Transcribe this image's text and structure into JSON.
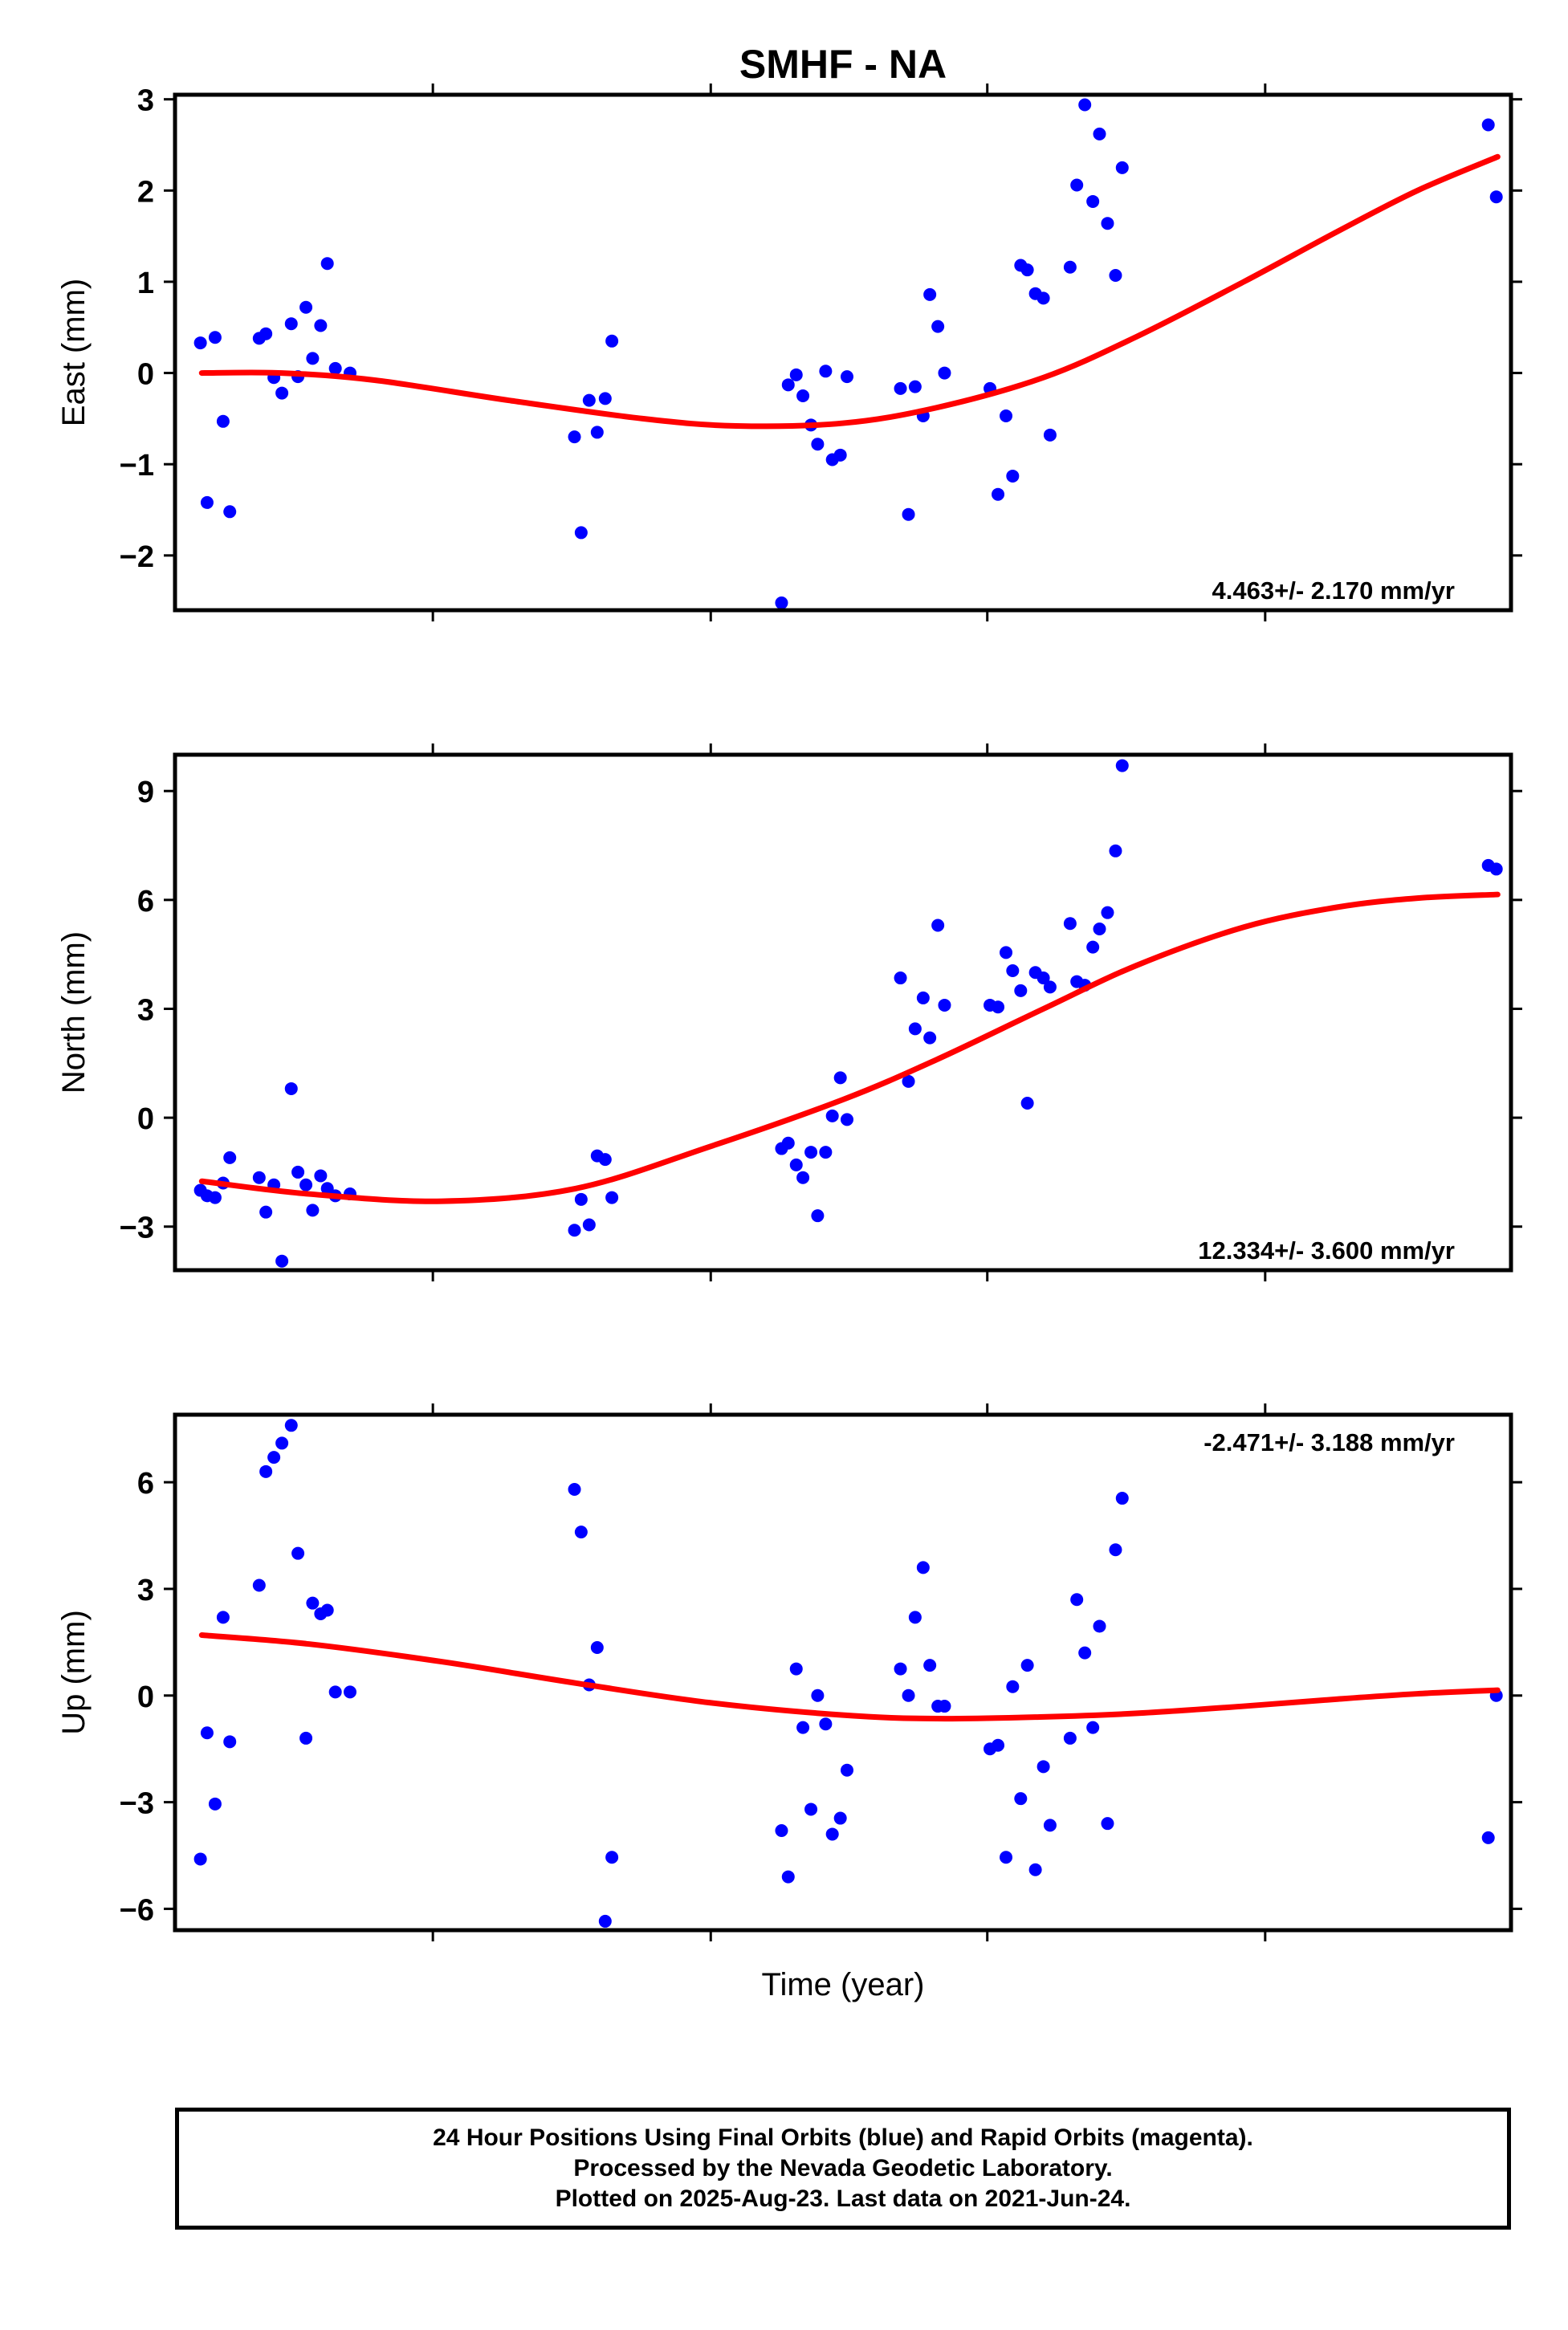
{
  "title": "SMHF - NA",
  "xlabel": "Time (year)",
  "caption": {
    "line1": "24 Hour Positions Using Final Orbits (blue) and Rapid Orbits (magenta).",
    "line2": "Processed by the Nevada Geodetic Laboratory.",
    "line3": "Plotted on 2025-Aug-23. Last data on 2021-Jun-24."
  },
  "colors": {
    "points": "#0000ff",
    "fit": "#ff0000",
    "frame": "#000000"
  },
  "chart_data": [
    {
      "type": "scatter",
      "ylabel": "East (mm)",
      "rate_label": "4.463+/- 2.170 mm/yr",
      "rate_position": "bottom-right",
      "ylim": [
        -2.6,
        3.05
      ],
      "yticks": [
        3,
        2,
        1,
        0,
        -1,
        -2
      ],
      "xlim": [
        0,
        1
      ],
      "series": [
        {
          "kind": "points",
          "x": [
            0.019,
            0.024,
            0.03,
            0.036,
            0.041,
            0.063,
            0.068,
            0.074,
            0.08,
            0.087,
            0.092,
            0.098,
            0.103,
            0.109,
            0.114,
            0.12,
            0.131,
            0.299,
            0.304,
            0.31,
            0.316,
            0.322,
            0.327,
            0.454,
            0.459,
            0.465,
            0.47,
            0.476,
            0.481,
            0.487,
            0.492,
            0.498,
            0.503,
            0.543,
            0.549,
            0.554,
            0.56,
            0.565,
            0.571,
            0.576,
            0.61,
            0.616,
            0.622,
            0.627,
            0.633,
            0.638,
            0.644,
            0.65,
            0.655,
            0.67,
            0.675,
            0.681,
            0.687,
            0.692,
            0.698,
            0.704,
            0.709,
            0.983,
            0.989
          ],
          "y": [
            0.33,
            -1.42,
            0.39,
            -0.53,
            -1.52,
            0.38,
            0.43,
            -0.05,
            -0.22,
            0.54,
            -0.04,
            0.72,
            0.16,
            0.52,
            1.2,
            0.05,
            0.0,
            -0.7,
            -1.75,
            -0.3,
            -0.65,
            -0.28,
            0.35,
            -2.52,
            -0.13,
            -0.02,
            -0.25,
            -0.57,
            -0.78,
            0.02,
            -0.95,
            -0.9,
            -0.04,
            -0.17,
            -1.55,
            -0.15,
            -0.47,
            0.86,
            0.51,
            0.0,
            -0.17,
            -1.33,
            -0.47,
            -1.13,
            1.18,
            1.13,
            0.87,
            0.82,
            -0.68,
            1.16,
            2.06,
            2.94,
            1.88,
            2.62,
            1.64,
            1.07,
            2.25,
            2.72,
            1.93
          ]
        },
        {
          "kind": "fit",
          "x": [
            0.02,
            0.08,
            0.15,
            0.25,
            0.35,
            0.42,
            0.5,
            0.57,
            0.65,
            0.72,
            0.8,
            0.87,
            0.93,
            0.99
          ],
          "y": [
            0.0,
            0.0,
            -0.08,
            -0.3,
            -0.5,
            -0.58,
            -0.55,
            -0.38,
            -0.05,
            0.4,
            1.0,
            1.55,
            2.0,
            2.37
          ]
        }
      ]
    },
    {
      "type": "scatter",
      "ylabel": "North (mm)",
      "rate_label": "12.334+/- 3.600 mm/yr",
      "rate_position": "bottom-right",
      "ylim": [
        -4.2,
        10.0
      ],
      "yticks": [
        9,
        6,
        3,
        0,
        -3
      ],
      "xlim": [
        0,
        1
      ],
      "series": [
        {
          "kind": "points",
          "x": [
            0.019,
            0.024,
            0.03,
            0.036,
            0.041,
            0.063,
            0.068,
            0.074,
            0.08,
            0.087,
            0.092,
            0.098,
            0.103,
            0.109,
            0.114,
            0.12,
            0.131,
            0.299,
            0.304,
            0.31,
            0.316,
            0.322,
            0.327,
            0.454,
            0.459,
            0.465,
            0.47,
            0.476,
            0.481,
            0.487,
            0.492,
            0.498,
            0.503,
            0.543,
            0.549,
            0.554,
            0.56,
            0.565,
            0.571,
            0.576,
            0.61,
            0.616,
            0.622,
            0.627,
            0.633,
            0.638,
            0.644,
            0.65,
            0.655,
            0.67,
            0.675,
            0.681,
            0.687,
            0.692,
            0.698,
            0.704,
            0.709,
            0.983,
            0.989
          ],
          "y": [
            -2.0,
            -2.15,
            -2.2,
            -1.8,
            -1.1,
            -1.65,
            -2.6,
            -1.85,
            -3.95,
            0.8,
            -1.5,
            -1.85,
            -2.55,
            -1.6,
            -1.95,
            -2.15,
            -2.1,
            -3.1,
            -2.25,
            -2.95,
            -1.05,
            -1.15,
            -2.2,
            -0.85,
            -0.7,
            -1.3,
            -1.65,
            -0.95,
            -2.7,
            -0.95,
            0.05,
            1.1,
            -0.05,
            3.85,
            1.0,
            2.45,
            3.3,
            2.2,
            5.3,
            3.1,
            3.1,
            3.05,
            4.55,
            4.05,
            3.5,
            0.4,
            4.0,
            3.85,
            3.6,
            5.35,
            3.75,
            3.65,
            4.7,
            5.2,
            5.65,
            7.35,
            9.7,
            6.95,
            6.85
          ]
        },
        {
          "kind": "fit",
          "x": [
            0.02,
            0.1,
            0.2,
            0.3,
            0.4,
            0.5,
            0.57,
            0.65,
            0.72,
            0.8,
            0.87,
            0.93,
            0.99
          ],
          "y": [
            -1.75,
            -2.1,
            -2.3,
            -1.95,
            -0.8,
            0.5,
            1.6,
            3.0,
            4.2,
            5.25,
            5.8,
            6.05,
            6.15
          ]
        }
      ]
    },
    {
      "type": "scatter",
      "ylabel": "Up (mm)",
      "rate_label": "-2.471+/- 3.188 mm/yr",
      "rate_position": "top-right",
      "ylim": [
        -6.6,
        7.9
      ],
      "yticks": [
        6,
        3,
        0,
        -3,
        -6
      ],
      "xlim": [
        0,
        1
      ],
      "series": [
        {
          "kind": "points",
          "x": [
            0.019,
            0.024,
            0.03,
            0.036,
            0.041,
            0.063,
            0.068,
            0.074,
            0.08,
            0.087,
            0.092,
            0.098,
            0.103,
            0.109,
            0.114,
            0.12,
            0.131,
            0.299,
            0.304,
            0.31,
            0.316,
            0.322,
            0.327,
            0.454,
            0.459,
            0.465,
            0.47,
            0.476,
            0.481,
            0.487,
            0.492,
            0.498,
            0.503,
            0.543,
            0.549,
            0.554,
            0.56,
            0.565,
            0.571,
            0.576,
            0.61,
            0.616,
            0.622,
            0.627,
            0.633,
            0.638,
            0.644,
            0.65,
            0.655,
            0.67,
            0.675,
            0.681,
            0.687,
            0.692,
            0.698,
            0.704,
            0.709,
            0.983,
            0.989
          ],
          "y": [
            -4.6,
            -1.05,
            -3.05,
            2.2,
            -1.3,
            3.1,
            6.3,
            6.7,
            7.1,
            7.6,
            4.0,
            -1.2,
            2.6,
            2.3,
            2.4,
            0.1,
            0.1,
            5.8,
            4.6,
            0.3,
            1.35,
            -6.35,
            -4.55,
            -3.8,
            -5.1,
            0.75,
            -0.9,
            -3.2,
            0.0,
            -0.8,
            -3.9,
            -3.45,
            -2.1,
            0.75,
            0.0,
            2.2,
            3.6,
            0.85,
            -0.3,
            -0.3,
            -1.5,
            -1.4,
            -4.55,
            0.25,
            -2.9,
            0.85,
            -4.9,
            -2.0,
            -3.65,
            -1.2,
            2.7,
            1.2,
            -0.9,
            1.95,
            -3.6,
            4.1,
            5.55,
            -4.0,
            0.0
          ]
        },
        {
          "kind": "fit",
          "x": [
            0.02,
            0.1,
            0.2,
            0.3,
            0.4,
            0.5,
            0.57,
            0.65,
            0.72,
            0.8,
            0.87,
            0.93,
            0.99
          ],
          "y": [
            1.7,
            1.45,
            0.95,
            0.35,
            -0.2,
            -0.55,
            -0.65,
            -0.6,
            -0.5,
            -0.3,
            -0.1,
            0.05,
            0.15
          ]
        }
      ]
    }
  ]
}
